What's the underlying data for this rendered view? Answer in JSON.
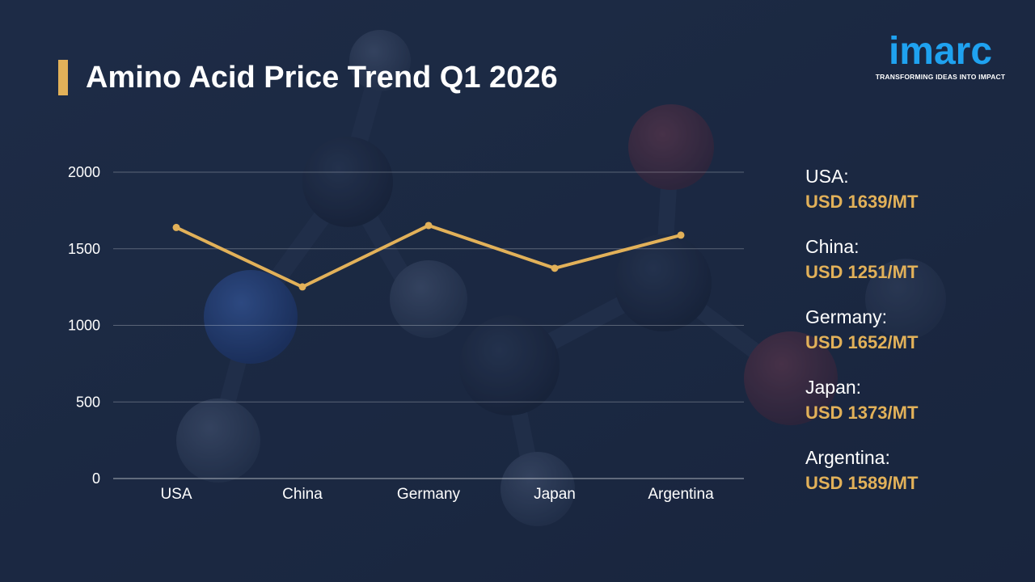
{
  "header": {
    "title": "Amino Acid Price Trend Q1 2026"
  },
  "logo": {
    "wordmark": "imarc",
    "tagline": "TRANSFORMING IDEAS INTO IMPACT"
  },
  "colors": {
    "background": "#1c2b45",
    "accent": "#e2b159",
    "logo_blue": "#1fa2f0"
  },
  "chart_data": {
    "type": "line",
    "categories": [
      "USA",
      "China",
      "Germany",
      "Japan",
      "Argentina"
    ],
    "values": [
      1639,
      1251,
      1652,
      1373,
      1589
    ],
    "yticks": [
      0,
      500,
      1000,
      1500,
      2000
    ],
    "ylim": [
      0,
      2000
    ],
    "grid": true,
    "color": "#e2b159"
  },
  "legend": {
    "items": [
      {
        "country": "USA:",
        "price": "USD 1639/MT"
      },
      {
        "country": "China:",
        "price": "USD 1251/MT"
      },
      {
        "country": "Germany:",
        "price": "USD 1652/MT"
      },
      {
        "country": "Japan:",
        "price": "USD 1373/MT"
      },
      {
        "country": "Argentina:",
        "price": "USD 1589/MT"
      }
    ]
  }
}
